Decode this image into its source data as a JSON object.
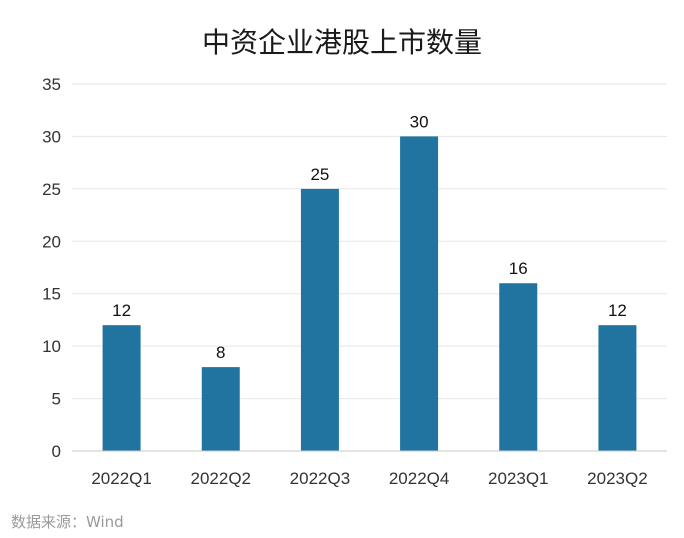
{
  "chart_data": {
    "type": "bar",
    "title": "中资企业港股上市数量",
    "categories": [
      "2022Q1",
      "2022Q2",
      "2022Q3",
      "2022Q4",
      "2023Q1",
      "2023Q2"
    ],
    "values": [
      12,
      8,
      25,
      30,
      16,
      12
    ],
    "data_labels": [
      "12",
      "8",
      "25",
      "30",
      "16",
      "12"
    ],
    "xlabel": "",
    "ylabel": "",
    "ylim": [
      0,
      35
    ],
    "yticks": [
      "0",
      "5",
      "10",
      "15",
      "20",
      "25",
      "30",
      "35"
    ],
    "grid": true,
    "legend": "none",
    "bar_color": "#21749f",
    "grid_color": "#e6e6e6"
  },
  "source": "数据来源：Wind"
}
